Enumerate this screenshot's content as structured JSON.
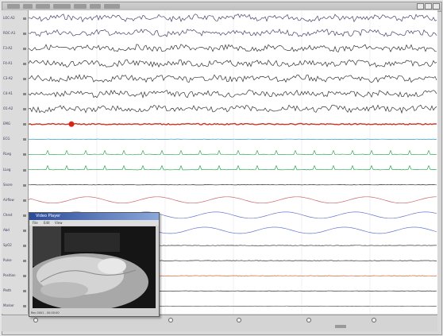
{
  "app": {
    "menu_count": 7
  },
  "channels": [
    {
      "label": "LOC-A2",
      "color": "#44446a"
    },
    {
      "label": "ROC-A1",
      "color": "#44446a"
    },
    {
      "label": "F3-A2",
      "color": "#333333"
    },
    {
      "label": "F4-A1",
      "color": "#333333"
    },
    {
      "label": "C3-A2",
      "color": "#333333"
    },
    {
      "label": "C4-A1",
      "color": "#333333"
    },
    {
      "label": "O1-A2",
      "color": "#333333"
    },
    {
      "label": "EMG",
      "color": "#cc3322"
    },
    {
      "label": "ECG",
      "color": "#3399cc"
    },
    {
      "label": "RLeg",
      "color": "#33aa55"
    },
    {
      "label": "LLeg",
      "color": "#33aa55"
    },
    {
      "label": "Snore",
      "color": "#333333"
    },
    {
      "label": "Airflow",
      "color": "#cc6666"
    },
    {
      "label": "Chest",
      "color": "#6677cc"
    },
    {
      "label": "Abd",
      "color": "#6677cc"
    },
    {
      "label": "SpO2",
      "color": "#333333"
    },
    {
      "label": "Pulse",
      "color": "#333333"
    },
    {
      "label": "Position",
      "color": "#cc6633"
    },
    {
      "label": "Pleth",
      "color": "#333333"
    },
    {
      "label": "Marker",
      "color": "#555555"
    }
  ],
  "video_window": {
    "title": "Video Player",
    "menu": [
      "File",
      "Edit",
      "View"
    ],
    "status": "Rec.0001 - 00:00:00"
  },
  "colors": {
    "window_bg": "#d9d9d9",
    "chart_bg": "#ffffff",
    "title_gradient_start": "#2a4a9a",
    "title_gradient_end": "#8aa8da"
  }
}
